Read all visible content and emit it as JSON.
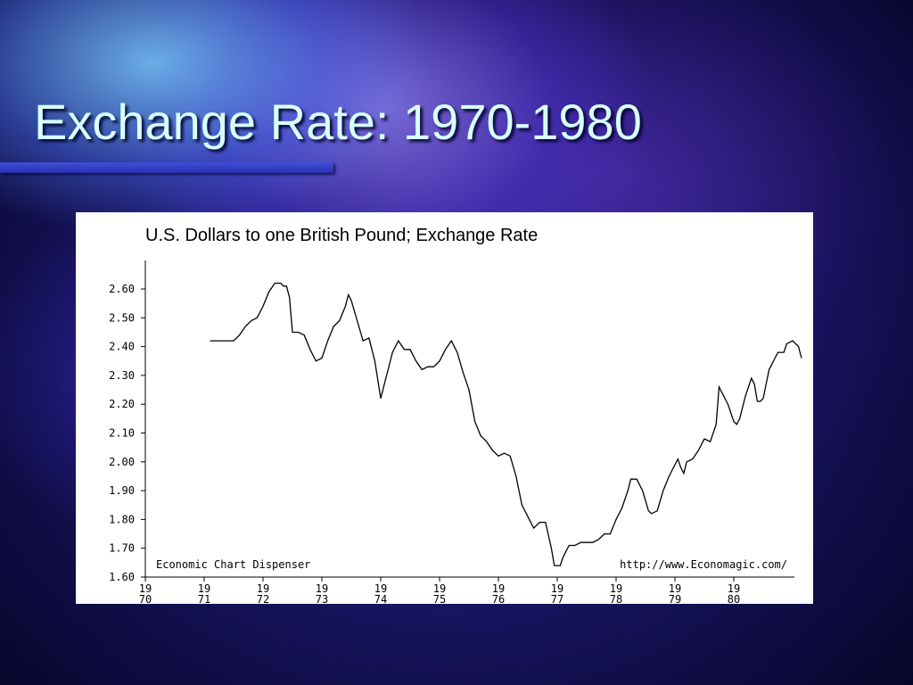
{
  "slide": {
    "title": "Exchange Rate: 1970-1980"
  },
  "chart_data": {
    "type": "line",
    "title": "U.S. Dollars to one British Pound; Exchange Rate",
    "xlabel": "",
    "ylabel": "",
    "xlim": [
      1970,
      1981
    ],
    "ylim": [
      1.6,
      2.7
    ],
    "y_ticks": [
      "1.60",
      "1.70",
      "1.80",
      "1.90",
      "2.00",
      "2.10",
      "2.20",
      "2.30",
      "2.40",
      "2.50",
      "2.60"
    ],
    "x_ticks": [
      {
        "top": "19",
        "bottom": "70"
      },
      {
        "top": "19",
        "bottom": "71"
      },
      {
        "top": "19",
        "bottom": "72"
      },
      {
        "top": "19",
        "bottom": "73"
      },
      {
        "top": "19",
        "bottom": "74"
      },
      {
        "top": "19",
        "bottom": "75"
      },
      {
        "top": "19",
        "bottom": "76"
      },
      {
        "top": "19",
        "bottom": "77"
      },
      {
        "top": "19",
        "bottom": "78"
      },
      {
        "top": "19",
        "bottom": "79"
      },
      {
        "top": "19",
        "bottom": "80"
      }
    ],
    "grid": false,
    "source_left": "Economic Chart Dispenser",
    "source_right": "http://www.Economagic.com/",
    "series": [
      {
        "values": [
          [
            1971.1,
            2.42
          ],
          [
            1971.5,
            2.42
          ],
          [
            1971.6,
            2.44
          ],
          [
            1971.7,
            2.47
          ],
          [
            1971.8,
            2.49
          ],
          [
            1971.9,
            2.5
          ],
          [
            1972.0,
            2.54
          ],
          [
            1972.1,
            2.59
          ],
          [
            1972.2,
            2.62
          ],
          [
            1972.3,
            2.62
          ],
          [
            1972.35,
            2.61
          ],
          [
            1972.4,
            2.61
          ],
          [
            1972.45,
            2.57
          ],
          [
            1972.5,
            2.45
          ],
          [
            1972.6,
            2.45
          ],
          [
            1972.7,
            2.44
          ],
          [
            1972.8,
            2.39
          ],
          [
            1972.9,
            2.35
          ],
          [
            1973.0,
            2.36
          ],
          [
            1973.1,
            2.42
          ],
          [
            1973.2,
            2.47
          ],
          [
            1973.3,
            2.49
          ],
          [
            1973.4,
            2.54
          ],
          [
            1973.45,
            2.58
          ],
          [
            1973.5,
            2.56
          ],
          [
            1973.6,
            2.49
          ],
          [
            1973.7,
            2.42
          ],
          [
            1973.8,
            2.43
          ],
          [
            1973.9,
            2.35
          ],
          [
            1974.0,
            2.22
          ],
          [
            1974.1,
            2.3
          ],
          [
            1974.2,
            2.38
          ],
          [
            1974.3,
            2.42
          ],
          [
            1974.4,
            2.39
          ],
          [
            1974.5,
            2.39
          ],
          [
            1974.6,
            2.35
          ],
          [
            1974.7,
            2.32
          ],
          [
            1974.8,
            2.33
          ],
          [
            1974.9,
            2.33
          ],
          [
            1975.0,
            2.35
          ],
          [
            1975.1,
            2.39
          ],
          [
            1975.2,
            2.42
          ],
          [
            1975.3,
            2.38
          ],
          [
            1975.4,
            2.31
          ],
          [
            1975.5,
            2.25
          ],
          [
            1975.6,
            2.14
          ],
          [
            1975.7,
            2.09
          ],
          [
            1975.8,
            2.07
          ],
          [
            1975.9,
            2.04
          ],
          [
            1976.0,
            2.02
          ],
          [
            1976.1,
            2.03
          ],
          [
            1976.2,
            2.02
          ],
          [
            1976.3,
            1.95
          ],
          [
            1976.4,
            1.85
          ],
          [
            1976.5,
            1.81
          ],
          [
            1976.6,
            1.77
          ],
          [
            1976.7,
            1.79
          ],
          [
            1976.8,
            1.79
          ],
          [
            1976.9,
            1.7
          ],
          [
            1976.95,
            1.64
          ],
          [
            1977.05,
            1.64
          ],
          [
            1977.1,
            1.67
          ],
          [
            1977.2,
            1.71
          ],
          [
            1977.3,
            1.71
          ],
          [
            1977.4,
            1.72
          ],
          [
            1977.6,
            1.72
          ],
          [
            1977.7,
            1.73
          ],
          [
            1977.8,
            1.75
          ],
          [
            1977.9,
            1.75
          ],
          [
            1978.0,
            1.8
          ],
          [
            1978.1,
            1.84
          ],
          [
            1978.2,
            1.9
          ],
          [
            1978.25,
            1.94
          ],
          [
            1978.35,
            1.94
          ],
          [
            1978.45,
            1.9
          ],
          [
            1978.55,
            1.83
          ],
          [
            1978.6,
            1.82
          ],
          [
            1978.7,
            1.83
          ],
          [
            1978.8,
            1.9
          ],
          [
            1978.9,
            1.95
          ],
          [
            1979.0,
            1.99
          ],
          [
            1979.05,
            2.01
          ],
          [
            1979.1,
            1.98
          ],
          [
            1979.15,
            1.96
          ],
          [
            1979.2,
            2.0
          ],
          [
            1979.3,
            2.01
          ],
          [
            1979.4,
            2.04
          ],
          [
            1979.5,
            2.08
          ],
          [
            1979.6,
            2.07
          ],
          [
            1979.7,
            2.13
          ],
          [
            1979.75,
            2.26
          ],
          [
            1979.8,
            2.24
          ],
          [
            1979.9,
            2.2
          ],
          [
            1980.0,
            2.14
          ],
          [
            1980.05,
            2.13
          ],
          [
            1980.1,
            2.15
          ],
          [
            1980.2,
            2.23
          ],
          [
            1980.3,
            2.29
          ],
          [
            1980.35,
            2.27
          ],
          [
            1980.4,
            2.21
          ],
          [
            1980.45,
            2.21
          ],
          [
            1980.5,
            2.22
          ],
          [
            1980.6,
            2.32
          ],
          [
            1980.7,
            2.36
          ],
          [
            1980.75,
            2.38
          ],
          [
            1980.85,
            2.38
          ],
          [
            1980.9,
            2.41
          ],
          [
            1981.0,
            2.42
          ],
          [
            1981.1,
            2.4
          ],
          [
            1981.15,
            2.36
          ]
        ]
      }
    ]
  }
}
